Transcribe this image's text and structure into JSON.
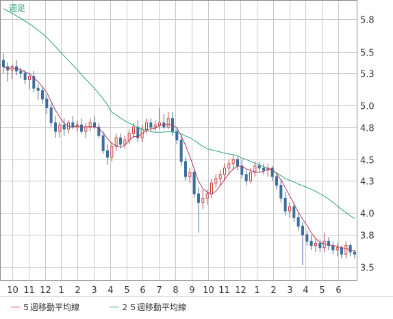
{
  "chart_data": {
    "type": "candlestick",
    "title": "週足",
    "y_ticks": [
      5.8,
      5.5,
      5.3,
      5.0,
      4.8,
      4.5,
      4.3,
      4.0,
      3.8,
      3.5
    ],
    "ylim": [
      3.38,
      5.98
    ],
    "x_tick_labels": [
      "10",
      "11",
      "12",
      "1",
      "2",
      "3",
      "4",
      "5",
      "6",
      "7",
      "8",
      "9",
      "10",
      "11",
      "12",
      "1",
      "2",
      "3",
      "4",
      "5",
      "6"
    ],
    "grid": true,
    "legend": [
      {
        "name": "５週移動平均線",
        "color": "#c83c3c"
      },
      {
        "name": "２５週移動平均線",
        "color": "#2aa07a"
      }
    ],
    "colors": {
      "up": "#c83c3c",
      "down": "#3c6ea0",
      "ma5": "#b03a5a",
      "ma25": "#2aa07a",
      "grid": "#c8c8c8",
      "title": "#2aa07a"
    },
    "candles": [
      [
        5.42,
        5.48,
        5.3,
        5.36
      ],
      [
        5.36,
        5.4,
        5.22,
        5.33
      ],
      [
        5.33,
        5.38,
        5.25,
        5.36
      ],
      [
        5.36,
        5.42,
        5.28,
        5.32
      ],
      [
        5.32,
        5.35,
        5.25,
        5.3
      ],
      [
        5.3,
        5.33,
        5.2,
        5.24
      ],
      [
        5.24,
        5.3,
        5.15,
        5.27
      ],
      [
        5.27,
        5.32,
        5.12,
        5.16
      ],
      [
        5.16,
        5.2,
        5.05,
        5.14
      ],
      [
        5.14,
        5.18,
        5.02,
        5.06
      ],
      [
        5.06,
        5.1,
        4.92,
        4.98
      ],
      [
        4.98,
        5.02,
        4.8,
        4.84
      ],
      [
        4.84,
        4.9,
        4.7,
        4.76
      ],
      [
        4.76,
        4.85,
        4.7,
        4.82
      ],
      [
        4.82,
        4.88,
        4.72,
        4.78
      ],
      [
        4.78,
        4.86,
        4.74,
        4.84
      ],
      [
        4.84,
        4.9,
        4.78,
        4.8
      ],
      [
        4.8,
        4.86,
        4.76,
        4.82
      ],
      [
        4.82,
        4.88,
        4.74,
        4.76
      ],
      [
        4.76,
        4.84,
        4.7,
        4.8
      ],
      [
        4.8,
        4.88,
        4.76,
        4.84
      ],
      [
        4.84,
        4.9,
        4.78,
        4.8
      ],
      [
        4.8,
        4.84,
        4.7,
        4.72
      ],
      [
        4.72,
        4.76,
        4.55,
        4.58
      ],
      [
        4.58,
        4.64,
        4.45,
        4.52
      ],
      [
        4.52,
        4.66,
        4.48,
        4.62
      ],
      [
        4.62,
        4.74,
        4.58,
        4.7
      ],
      [
        4.7,
        4.74,
        4.6,
        4.64
      ],
      [
        4.64,
        4.72,
        4.6,
        4.68
      ],
      [
        4.68,
        4.78,
        4.64,
        4.74
      ],
      [
        4.74,
        4.84,
        4.7,
        4.8
      ],
      [
        4.8,
        4.86,
        4.66,
        4.7
      ],
      [
        4.7,
        4.82,
        4.66,
        4.78
      ],
      [
        4.78,
        4.88,
        4.74,
        4.84
      ],
      [
        4.84,
        4.88,
        4.76,
        4.8
      ],
      [
        4.8,
        4.86,
        4.76,
        4.82
      ],
      [
        4.82,
        4.98,
        4.78,
        4.84
      ],
      [
        4.84,
        4.92,
        4.78,
        4.8
      ],
      [
        4.8,
        4.94,
        4.78,
        4.88
      ],
      [
        4.88,
        4.94,
        4.72,
        4.76
      ],
      [
        4.76,
        4.8,
        4.64,
        4.68
      ],
      [
        4.68,
        4.72,
        4.44,
        4.48
      ],
      [
        4.48,
        4.52,
        4.3,
        4.34
      ],
      [
        4.34,
        4.42,
        4.28,
        4.38
      ],
      [
        4.38,
        4.42,
        4.14,
        4.18
      ],
      [
        4.18,
        4.24,
        3.82,
        4.1
      ],
      [
        4.1,
        4.22,
        4.04,
        4.14
      ],
      [
        4.14,
        4.22,
        4.08,
        4.18
      ],
      [
        4.18,
        4.32,
        4.14,
        4.28
      ],
      [
        4.28,
        4.36,
        4.24,
        4.32
      ],
      [
        4.32,
        4.4,
        4.26,
        4.36
      ],
      [
        4.36,
        4.46,
        4.3,
        4.42
      ],
      [
        4.42,
        4.5,
        4.36,
        4.46
      ],
      [
        4.46,
        4.54,
        4.4,
        4.5
      ],
      [
        4.5,
        4.52,
        4.4,
        4.44
      ],
      [
        4.44,
        4.5,
        4.32,
        4.36
      ],
      [
        4.36,
        4.4,
        4.26,
        4.3
      ],
      [
        4.3,
        4.42,
        4.28,
        4.38
      ],
      [
        4.38,
        4.48,
        4.34,
        4.44
      ],
      [
        4.44,
        4.48,
        4.38,
        4.42
      ],
      [
        4.42,
        4.46,
        4.36,
        4.4
      ],
      [
        4.4,
        4.46,
        4.34,
        4.42
      ],
      [
        4.42,
        4.44,
        4.3,
        4.34
      ],
      [
        4.34,
        4.38,
        4.22,
        4.26
      ],
      [
        4.26,
        4.32,
        4.1,
        4.14
      ],
      [
        4.14,
        4.2,
        3.98,
        4.02
      ],
      [
        4.02,
        4.1,
        3.96,
        4.06
      ],
      [
        4.06,
        4.1,
        3.92,
        3.96
      ],
      [
        3.96,
        4.0,
        3.84,
        3.88
      ],
      [
        3.88,
        3.92,
        3.52,
        3.8
      ],
      [
        3.8,
        3.84,
        3.7,
        3.74
      ],
      [
        3.74,
        3.8,
        3.66,
        3.7
      ],
      [
        3.7,
        3.76,
        3.64,
        3.72
      ],
      [
        3.72,
        3.76,
        3.64,
        3.68
      ],
      [
        3.68,
        3.82,
        3.64,
        3.74
      ],
      [
        3.74,
        3.78,
        3.66,
        3.7
      ],
      [
        3.7,
        3.74,
        3.62,
        3.66
      ],
      [
        3.66,
        3.72,
        3.6,
        3.68
      ],
      [
        3.68,
        3.7,
        3.58,
        3.62
      ],
      [
        3.62,
        3.74,
        3.58,
        3.7
      ],
      [
        3.7,
        3.72,
        3.6,
        3.64
      ],
      [
        3.64,
        3.66,
        3.58,
        3.62
      ]
    ]
  }
}
